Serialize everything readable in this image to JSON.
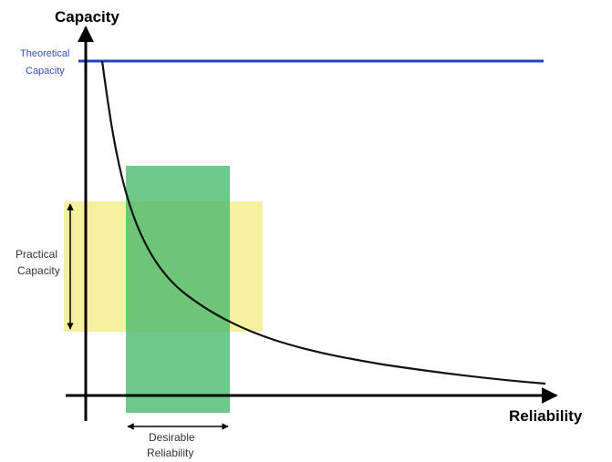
{
  "axes": {
    "y_label": "Capacity",
    "x_label": "Reliability"
  },
  "theoretical_capacity": {
    "line1": "Theoretical",
    "line2": "Capacity"
  },
  "practical_capacity": {
    "line1": "Practical",
    "line2": "Capacity"
  },
  "desirable_reliability": {
    "line1": "Desirable",
    "line2": "Reliability"
  },
  "colors": {
    "theoretical_line": "#2244bb",
    "theoretical_label": "#2f4fc4",
    "practical_band": "#f4ee8f",
    "desirable_band": "#46b86c",
    "curve": "#111111",
    "axis": "#000000"
  }
}
